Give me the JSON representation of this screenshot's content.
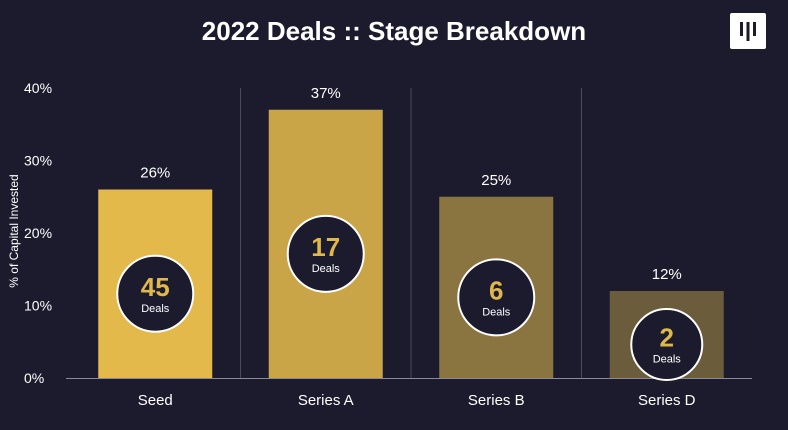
{
  "title": "2022 Deals :: Stage Breakdown",
  "logo_icon": "pitchbook-logo-icon",
  "colors": {
    "background": "#1c1b2e",
    "text": "#ffffff",
    "accent": "#e0b84a",
    "gridline": "#4a4a5c",
    "bubble": "#1c1b2e"
  },
  "chart_data": {
    "type": "bar",
    "title": "2022 Deals :: Stage Breakdown",
    "xlabel": "",
    "ylabel": "% of Capital Invested",
    "categories": [
      "Seed",
      "Series A",
      "Series B",
      "Series D"
    ],
    "values": [
      26,
      37,
      25,
      12
    ],
    "value_labels": [
      "26%",
      "37%",
      "25%",
      "12%"
    ],
    "deal_counts": [
      "45",
      "17",
      "6",
      "2"
    ],
    "deal_word": "Deals",
    "bar_colors": [
      "#e3b94c",
      "#c9a548",
      "#8a7541",
      "#6b5c3c"
    ],
    "ylim": [
      0,
      40
    ],
    "yticks": [
      0,
      10,
      20,
      30,
      40
    ],
    "ytick_labels": [
      "0%",
      "10%",
      "20%",
      "30%",
      "40%"
    ],
    "grid": "vertical separators between categories",
    "legend": "none"
  }
}
